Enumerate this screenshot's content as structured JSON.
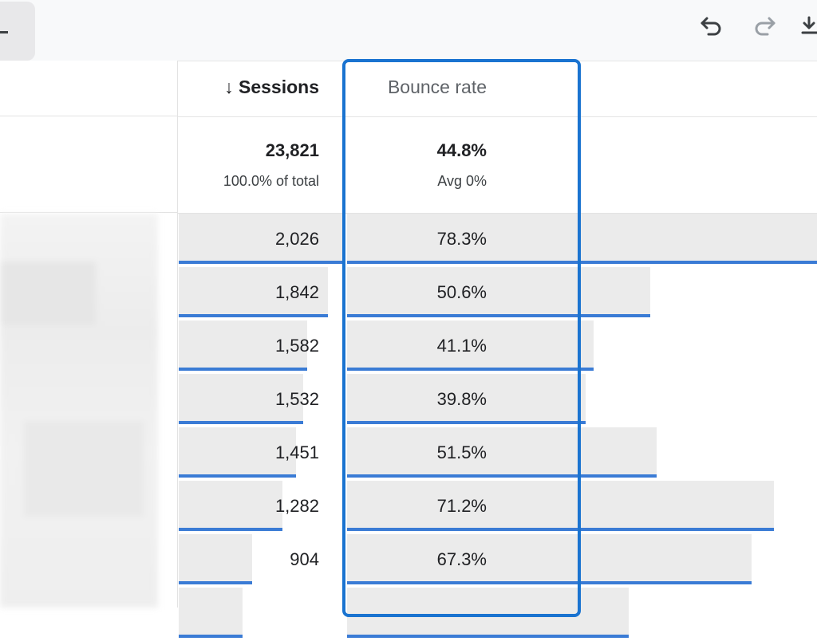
{
  "toolbar": {
    "undo_icon": "undo-icon",
    "redo_icon": "redo-icon",
    "download_icon": "download-icon"
  },
  "header": {
    "sort_arrow": "↓",
    "sessions": "Sessions",
    "bounce_rate": "Bounce rate"
  },
  "totals": {
    "sessions": "23,821",
    "sessions_sub": "100.0% of total",
    "bounce_rate": "44.8%",
    "bounce_sub": "Avg 0%"
  },
  "rows": [
    {
      "sessions": "2,026",
      "bounce_rate": "78.3%",
      "sessions_frac": 1.0,
      "bounce_frac": 1.0
    },
    {
      "sessions": "1,842",
      "bounce_rate": "50.6%",
      "sessions_frac": 0.909,
      "bounce_frac": 0.646
    },
    {
      "sessions": "1,582",
      "bounce_rate": "41.1%",
      "sessions_frac": 0.781,
      "bounce_frac": 0.525
    },
    {
      "sessions": "1,532",
      "bounce_rate": "39.8%",
      "sessions_frac": 0.756,
      "bounce_frac": 0.508
    },
    {
      "sessions": "1,451",
      "bounce_rate": "51.5%",
      "sessions_frac": 0.716,
      "bounce_frac": 0.658
    },
    {
      "sessions": "1,282",
      "bounce_rate": "71.2%",
      "sessions_frac": 0.633,
      "bounce_frac": 0.909
    },
    {
      "sessions": "904",
      "bounce_rate": "67.3%",
      "sessions_frac": 0.446,
      "bounce_frac": 0.86
    },
    {
      "sessions": "",
      "bounce_rate": "",
      "sessions_frac": 0.39,
      "bounce_frac": 0.6
    }
  ]
}
